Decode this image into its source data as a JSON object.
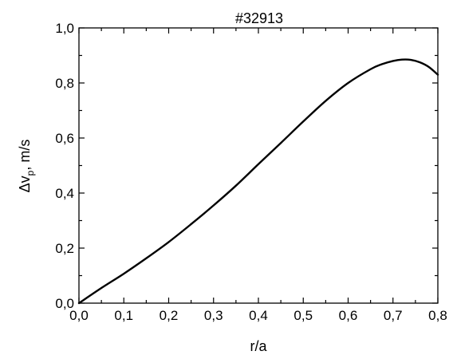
{
  "chart_data": {
    "type": "line",
    "title": "#32913",
    "xlabel": "r/a",
    "ylabel_main": "Δv",
    "ylabel_sub": "p",
    "ylabel_rest": ", m/s",
    "xlim": [
      0.0,
      0.8
    ],
    "ylim": [
      0.0,
      1.0
    ],
    "grid": false,
    "x_ticks": [
      0.0,
      0.1,
      0.2,
      0.3,
      0.4,
      0.5,
      0.6,
      0.7,
      0.8
    ],
    "x_tick_labels": [
      "0,0",
      "0,1",
      "0,2",
      "0,3",
      "0,4",
      "0,5",
      "0,6",
      "0,7",
      "0,8"
    ],
    "y_ticks": [
      0.0,
      0.2,
      0.4,
      0.6,
      0.8,
      1.0
    ],
    "y_tick_labels": [
      "0,0",
      "0,2",
      "0,4",
      "0,6",
      "0,8",
      "1,0"
    ],
    "series": [
      {
        "color": "#000000",
        "x": [
          0.0,
          0.05,
          0.1,
          0.15,
          0.2,
          0.25,
          0.3,
          0.35,
          0.4,
          0.45,
          0.5,
          0.55,
          0.6,
          0.65,
          0.675,
          0.7,
          0.72,
          0.74,
          0.76,
          0.78,
          0.8
        ],
        "y": [
          0.0,
          0.055,
          0.107,
          0.163,
          0.222,
          0.287,
          0.355,
          0.427,
          0.505,
          0.582,
          0.66,
          0.735,
          0.8,
          0.85,
          0.868,
          0.88,
          0.885,
          0.884,
          0.875,
          0.858,
          0.83
        ]
      }
    ]
  }
}
